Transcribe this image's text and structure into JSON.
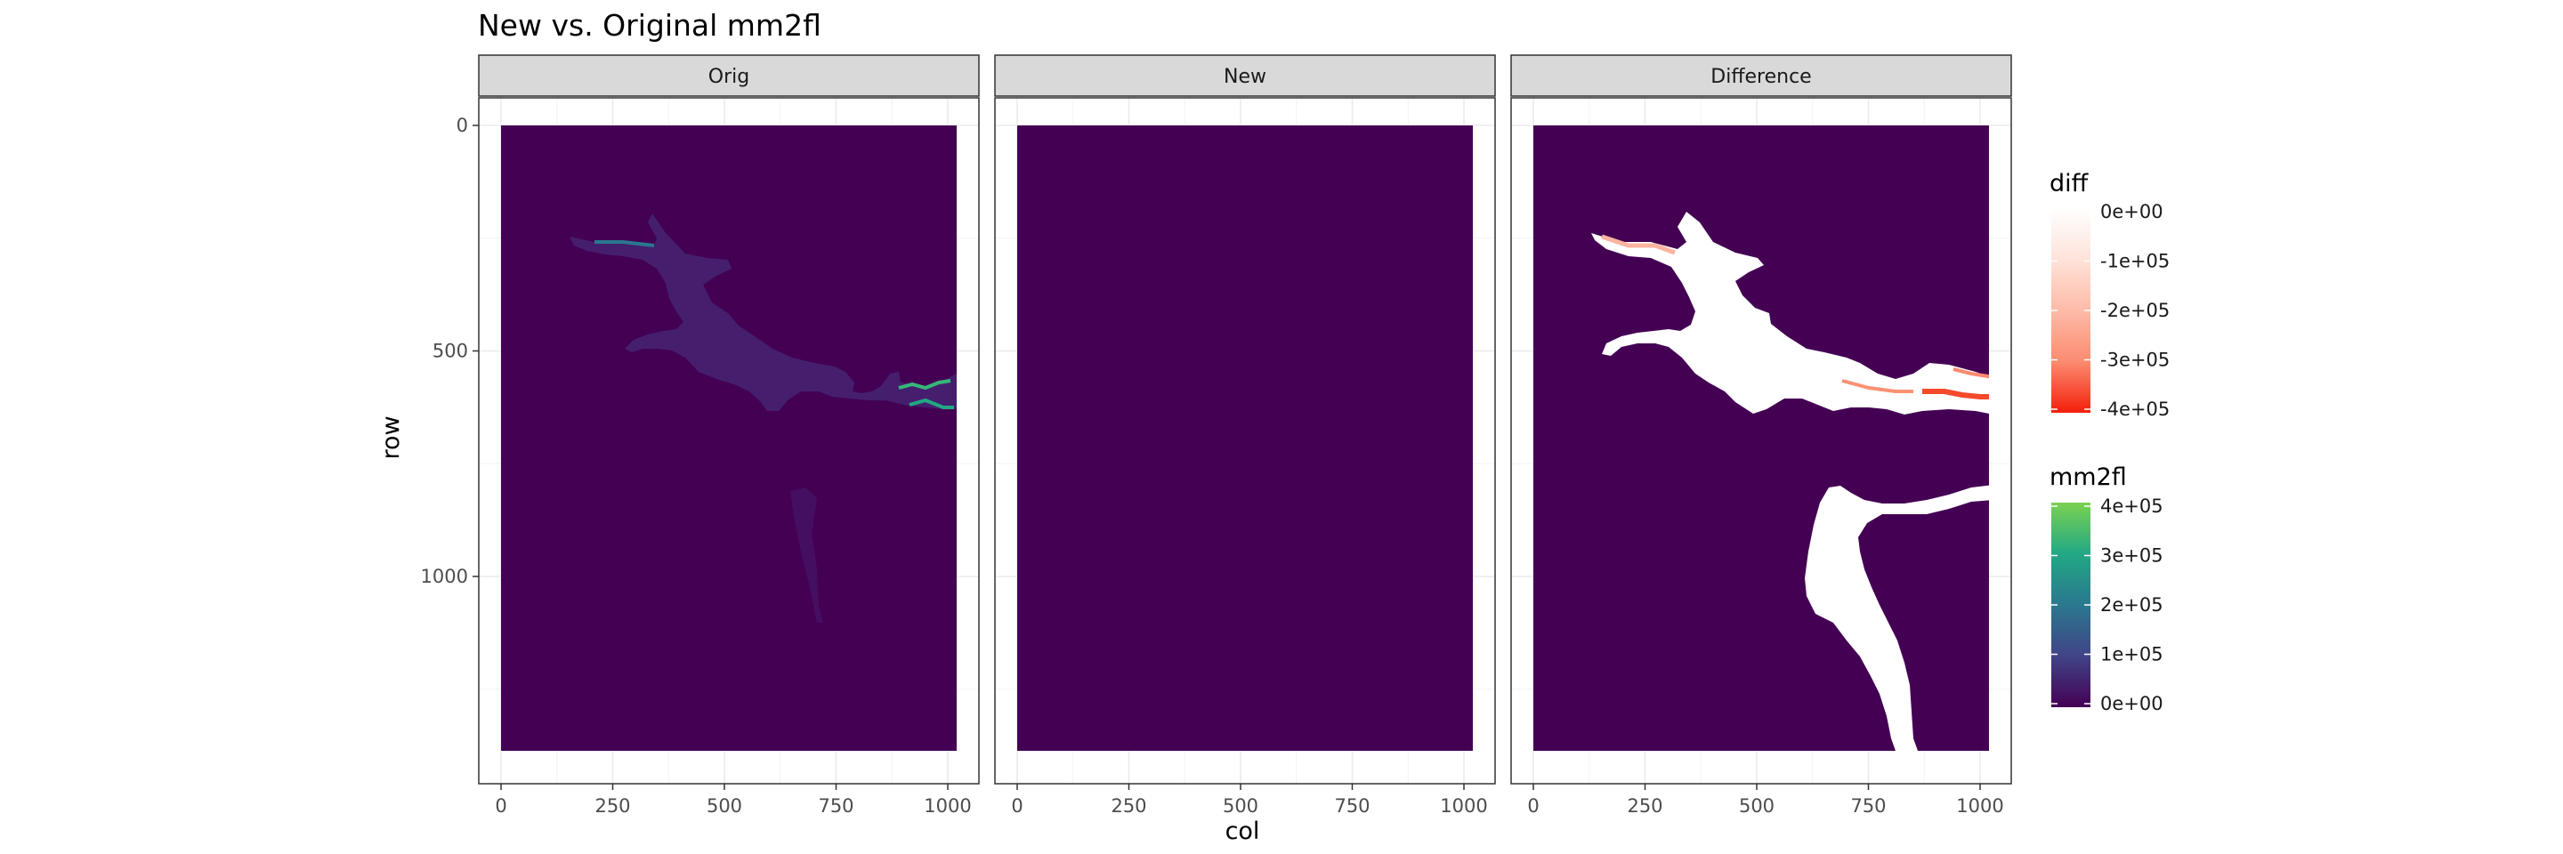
{
  "chart_data": {
    "type": "heatmap",
    "title": "New vs. Original mm2fl",
    "xlabel": "col",
    "ylabel": "row",
    "facets": [
      "Orig",
      "New",
      "Difference"
    ],
    "xlim": [
      0,
      1020
    ],
    "ylim": [
      1390,
      0
    ],
    "xticks": [
      0,
      250,
      500,
      750,
      1000
    ],
    "yticks": [
      0,
      500,
      1000
    ],
    "grid": true,
    "legends": [
      {
        "title": "diff",
        "breaks": [
          0,
          -100000,
          -200000,
          -300000,
          -400000
        ],
        "labels": [
          "0e+00",
          "-1e+05",
          "-2e+05",
          "-3e+05",
          "-4e+05"
        ],
        "colors": [
          "#ffffff",
          "#fddad0",
          "#fcb39f",
          "#fc8a6f",
          "#f41f0b"
        ]
      },
      {
        "title": "mm2fl",
        "breaks": [
          400000,
          300000,
          200000,
          100000,
          0
        ],
        "labels": [
          "4e+05",
          "3e+05",
          "2e+05",
          "1e+05",
          "0e+00"
        ],
        "colors": [
          "#7ad151",
          "#22a884",
          "#2a788e",
          "#414487",
          "#440154"
        ]
      }
    ],
    "colors": {
      "background_fill": "#440154",
      "strip_fill": "#d9d9d9",
      "diff_low": "#f41f0b",
      "diff_high": "#ffffff",
      "highlight_teal": "#35b779",
      "panel_border": "#333333",
      "grid_color": "#ebebeb"
    }
  }
}
